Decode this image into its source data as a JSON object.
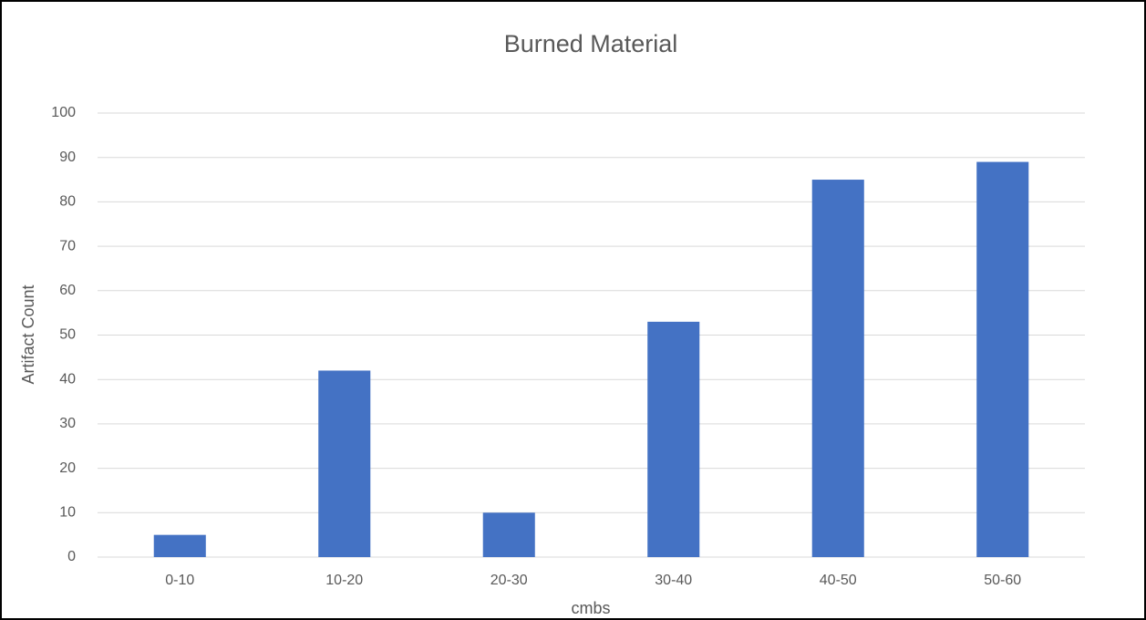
{
  "chart_data": {
    "type": "bar",
    "title": "Burned Material",
    "x_label": "cmbs",
    "y_label": "Artifact Count",
    "categories": [
      "0-10",
      "10-20",
      "20-30",
      "30-40",
      "40-50",
      "50-60"
    ],
    "values": [
      5,
      42,
      10,
      53,
      85,
      89
    ],
    "color": "#4472c4",
    "ylim": [
      0,
      100
    ],
    "yticks": [
      0,
      10,
      20,
      30,
      40,
      50,
      60,
      70,
      80,
      90,
      100
    ],
    "grid": true
  }
}
